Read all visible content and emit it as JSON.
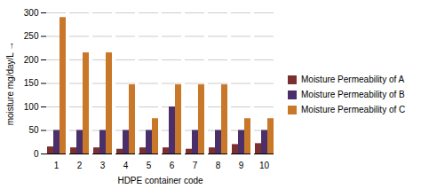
{
  "chart_data": {
    "type": "bar",
    "categories": [
      1,
      2,
      3,
      4,
      5,
      6,
      7,
      8,
      9,
      10
    ],
    "series": [
      {
        "name": "Moisture Permeability of A",
        "color": "#7B3030",
        "values": [
          15,
          13,
          13,
          10,
          13,
          13,
          10,
          13,
          20,
          22
        ]
      },
      {
        "name": "Moisture Permeability of B",
        "color": "#4B2F6B",
        "values": [
          50,
          50,
          50,
          50,
          50,
          100,
          50,
          50,
          50,
          50
        ]
      },
      {
        "name": "Moisture Permeability of C",
        "color": "#C87828",
        "values": [
          290,
          215,
          215,
          147,
          75,
          147,
          147,
          147,
          75,
          75
        ]
      }
    ],
    "xlabel": "HDPE container code",
    "ylabel": "moisture mg/day/L",
    "ylim": [
      0,
      300
    ],
    "yticks": [
      0,
      50,
      100,
      150,
      200,
      250,
      300
    ],
    "grid": true,
    "legend": "right"
  }
}
